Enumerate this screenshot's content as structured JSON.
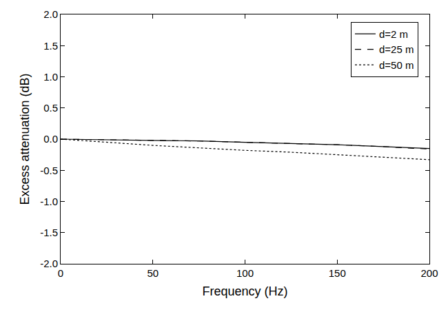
{
  "chart_data": {
    "type": "line",
    "x_label": "Frequency (Hz)",
    "y_label": "Excess attenuation (dB)",
    "x": [
      0,
      25,
      50,
      75,
      100,
      125,
      150,
      175,
      200
    ],
    "series": [
      {
        "name": "d=2 m",
        "color": "#000000",
        "line_style": "solid",
        "values": [
          0,
          -0.01,
          -0.02,
          -0.03,
          -0.05,
          -0.07,
          -0.09,
          -0.12,
          -0.15
        ]
      },
      {
        "name": "d=25 m",
        "color": "#000000",
        "line_style": "dash",
        "values": [
          0,
          -0.01,
          -0.02,
          -0.03,
          -0.05,
          -0.07,
          -0.09,
          -0.12,
          -0.16
        ]
      },
      {
        "name": "d=50 m",
        "color": "#000000",
        "line_style": "dot",
        "values": [
          0,
          -0.05,
          -0.1,
          -0.14,
          -0.18,
          -0.21,
          -0.25,
          -0.29,
          -0.33
        ]
      }
    ],
    "xlim": [
      0,
      200
    ],
    "xticks": [
      0,
      50,
      100,
      150,
      200
    ],
    "ylim": [
      -2,
      2
    ],
    "yticks": [
      {
        "value": -2,
        "label": "-2.0"
      },
      {
        "value": -1.5,
        "label": "-1.5"
      },
      {
        "value": -1,
        "label": "-1.0"
      },
      {
        "value": -0.5,
        "label": "-0.5"
      },
      {
        "value": 0,
        "label": "0.0"
      },
      {
        "value": 0.5,
        "label": "0.5"
      },
      {
        "value": 1,
        "label": "1.0"
      },
      {
        "value": 1.5,
        "label": "1.5"
      },
      {
        "value": 2,
        "label": "2.0"
      }
    ],
    "grid": false,
    "legend": "upper right"
  }
}
